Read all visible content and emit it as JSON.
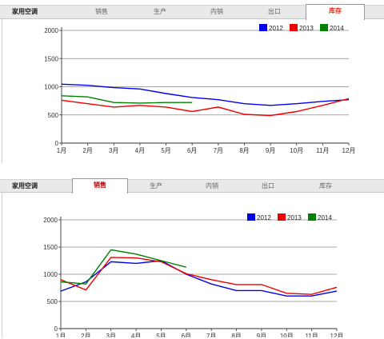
{
  "panels": [
    {
      "category_label": "家用空调",
      "tabs": [
        "销售",
        "生产",
        "内销",
        "出口",
        "库存"
      ],
      "active_tab": 4,
      "active_color": "#e03020",
      "chart_data": {
        "type": "line",
        "categories": [
          "1月",
          "2月",
          "3月",
          "4月",
          "5月",
          "6月",
          "7月",
          "8月",
          "9月",
          "10月",
          "11月",
          "12月"
        ],
        "ylim": [
          0,
          2000
        ],
        "yticks": [
          "0",
          "500",
          "1000",
          "1500",
          "2000"
        ],
        "legend_position": "top-right",
        "grid": true,
        "series": [
          {
            "name": "2012",
            "color": "#0000ee",
            "values": [
              1045,
              1025,
              985,
              960,
              880,
              810,
              770,
              700,
              670,
              700,
              740,
              770
            ]
          },
          {
            "name": "2013",
            "color": "#ee0000",
            "values": [
              760,
              700,
              640,
              670,
              640,
              560,
              640,
              510,
              490,
              560,
              670,
              790
            ]
          },
          {
            "name": "2014",
            "color": "#008000",
            "values": [
              840,
              820,
              720,
              710,
              720,
              720,
              null,
              null,
              null,
              null,
              null,
              null
            ]
          }
        ]
      }
    },
    {
      "category_label": "家用空调",
      "tabs": [
        "销售",
        "生产",
        "内销",
        "出口",
        "库存"
      ],
      "active_tab": 0,
      "active_color": "#c00000",
      "chart_data": {
        "type": "line",
        "categories": [
          "1月",
          "2月",
          "3月",
          "4月",
          "5月",
          "6月",
          "7月",
          "8月",
          "9月",
          "10月",
          "11月",
          "12月"
        ],
        "ylim": [
          0,
          2000
        ],
        "yticks": [
          "0",
          "500",
          "1000",
          "1500",
          "2000"
        ],
        "legend_position": "top-right",
        "grid": true,
        "series": [
          {
            "name": "2012",
            "color": "#0000ee",
            "values": [
              690,
              860,
              1230,
              1200,
              1250,
              1000,
              820,
              700,
              700,
              600,
              600,
              690
            ]
          },
          {
            "name": "2013",
            "color": "#ee0000",
            "values": [
              900,
              710,
              1310,
              1300,
              1230,
              1010,
              900,
              810,
              810,
              650,
              630,
              760
            ]
          },
          {
            "name": "2014",
            "color": "#008000",
            "values": [
              860,
              820,
              1450,
              1370,
              1250,
              1130,
              null,
              null,
              null,
              null,
              null,
              null
            ]
          }
        ]
      }
    }
  ]
}
